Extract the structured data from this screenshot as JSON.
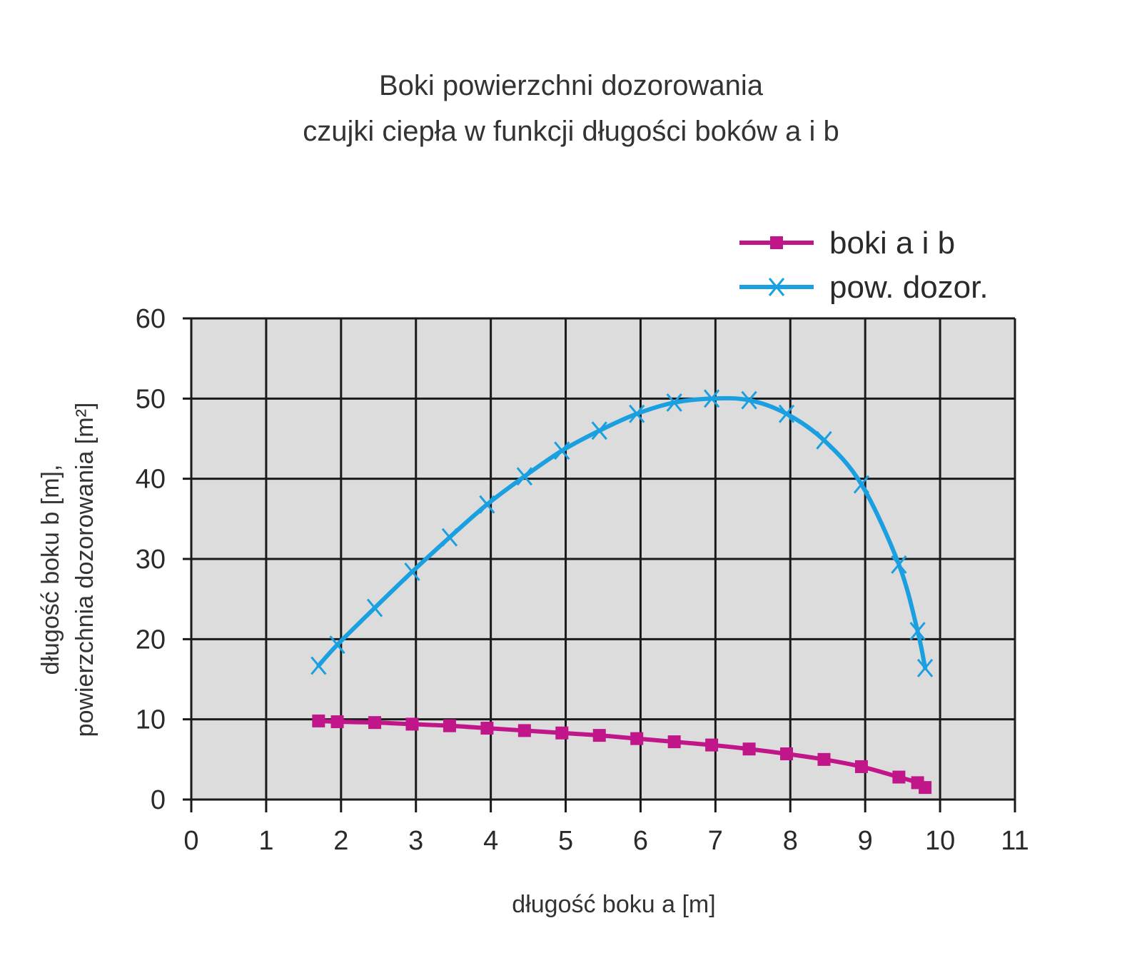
{
  "chart_data": {
    "type": "line",
    "title": "Boki powierzchni dozorowania",
    "subtitle": "czujki ciepła w funkcji długości boków a i b",
    "xlabel": "długość boku a [m]",
    "ylabel_line1": "długość boku b [m],",
    "ylabel_line2": "powierzchnia dozorowania [m²]",
    "xlim": [
      0,
      11
    ],
    "ylim": [
      0,
      60
    ],
    "xticks": [
      "0",
      "1",
      "2",
      "3",
      "4",
      "5",
      "6",
      "7",
      "8",
      "9",
      "10",
      "11"
    ],
    "yticks": [
      "0",
      "10",
      "20",
      "30",
      "40",
      "50",
      "60"
    ],
    "grid": true,
    "legend_position": "top-right",
    "background_color": "#dcdcdc",
    "series": [
      {
        "name": "boki a i b",
        "color": "#c0168a",
        "marker": "square",
        "x": [
          1.7,
          1.95,
          2.45,
          2.95,
          3.45,
          3.95,
          4.45,
          4.95,
          5.45,
          5.95,
          6.45,
          6.95,
          7.45,
          7.95,
          8.45,
          8.95,
          9.45,
          9.7,
          9.8
        ],
        "y": [
          9.8,
          9.7,
          9.6,
          9.4,
          9.2,
          8.9,
          8.6,
          8.3,
          8.0,
          7.6,
          7.2,
          6.8,
          6.3,
          5.7,
          5.0,
          4.1,
          2.8,
          2.1,
          1.5
        ]
      },
      {
        "name": "pow. dozor.",
        "color": "#1a9fe0",
        "marker": "x",
        "x": [
          1.7,
          1.95,
          2.45,
          2.95,
          3.45,
          3.95,
          4.45,
          4.95,
          5.45,
          5.95,
          6.45,
          6.95,
          7.45,
          7.95,
          8.45,
          8.95,
          9.45,
          9.7,
          9.8
        ],
        "y": [
          16.7,
          19.3,
          23.9,
          28.4,
          32.7,
          36.8,
          40.3,
          43.5,
          46.0,
          48.1,
          49.5,
          50.0,
          49.8,
          48.1,
          44.8,
          39.3,
          29.3,
          21.0,
          16.4
        ]
      }
    ]
  }
}
